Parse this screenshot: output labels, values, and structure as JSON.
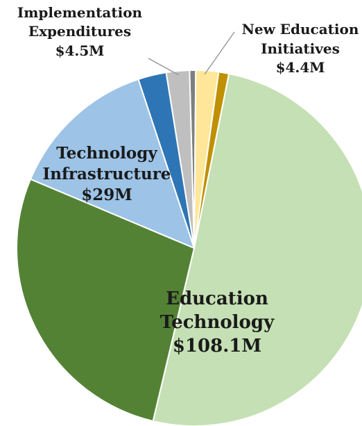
{
  "chart_data": {
    "type": "pie",
    "slices": [
      {
        "value": 1.2,
        "color": "#7f7f7f"
      },
      {
        "value": 4.4,
        "color": "#ffe699"
      },
      {
        "value": 2.0,
        "color": "#bf9000"
      },
      {
        "value": 108.1,
        "color": "#c5e0b4"
      },
      {
        "value": 59.0,
        "color": "#548235"
      },
      {
        "value": 29.0,
        "color": "#9dc3e6"
      },
      {
        "value": 5.5,
        "color": "#2e75b6"
      },
      {
        "value": 4.5,
        "color": "#bfbfbf"
      }
    ],
    "labels": {
      "implementation": [
        "Implementation",
        "Expenditures",
        "$4.5M"
      ],
      "new_education": [
        "New Education",
        "Initiatives",
        "$4.4M"
      ],
      "tech_infra": [
        "Technology",
        "Infrastructure",
        "$29M"
      ],
      "edu_tech": [
        "Education",
        "Technology",
        "$108.1M"
      ]
    }
  }
}
